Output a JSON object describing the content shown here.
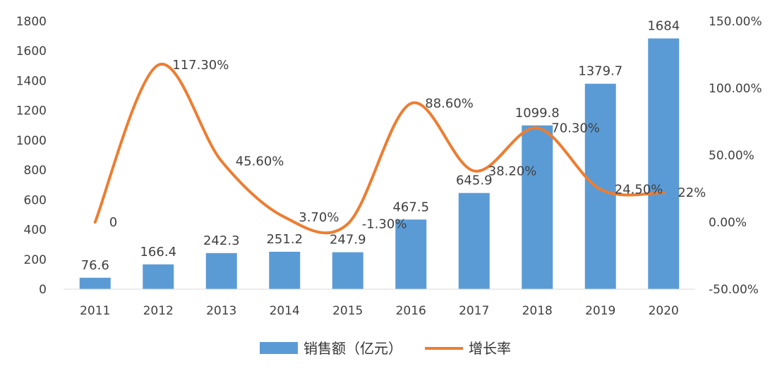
{
  "chart_data": {
    "type": "bar",
    "categories": [
      "2011",
      "2012",
      "2013",
      "2014",
      "2015",
      "2016",
      "2017",
      "2018",
      "2019",
      "2020"
    ],
    "series": [
      {
        "name": "销售额（亿元）",
        "type": "bar",
        "axis": "left",
        "color": "#5B9BD5",
        "values": [
          76.6,
          166.4,
          242.3,
          251.2,
          247.9,
          467.5,
          645.9,
          1099.8,
          1379.7,
          1684
        ],
        "labels": [
          "76.6",
          "166.4",
          "242.3",
          "251.2",
          "247.9",
          "467.5",
          "645.9",
          "1099.8",
          "1379.7",
          "1684"
        ]
      },
      {
        "name": "增长率",
        "type": "line",
        "smooth": true,
        "axis": "right",
        "color": "#ED7D31",
        "values": [
          0,
          117.3,
          45.6,
          3.7,
          -1.3,
          88.6,
          38.2,
          70.3,
          24.5,
          22
        ],
        "labels": [
          "0",
          "117.30%",
          "45.60%",
          "3.70%",
          "-1.30%",
          "88.60%",
          "38.20%",
          "70.30%",
          "24.50%",
          "22%"
        ]
      }
    ],
    "y_left": {
      "ylim": [
        0,
        1800
      ],
      "ticks": [
        "0",
        "200",
        "400",
        "600",
        "800",
        "1000",
        "1200",
        "1400",
        "1600",
        "1800"
      ]
    },
    "y_right": {
      "ylim": [
        -50,
        150
      ],
      "ticks": [
        "-50.00%",
        "0.00%",
        "50.00%",
        "100.00%",
        "150.00%"
      ]
    },
    "grid": false,
    "legend": "bottom"
  }
}
